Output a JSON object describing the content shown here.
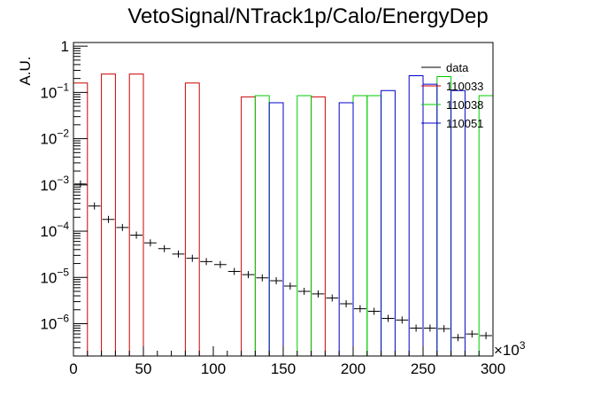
{
  "chart_data": {
    "type": "bar",
    "title": "VetoSignal/NTrack1p/Calo/EnergyDep",
    "ylabel": "A.U.",
    "xlabel": "",
    "x_multiplier_label": "×10",
    "x_multiplier_exp": "3",
    "xlim": [
      0,
      300
    ],
    "ylim": [
      2e-07,
      1.2
    ],
    "yscale": "log",
    "bin_width": 10,
    "x_ticks": [
      {
        "v": 0,
        "label": "0"
      },
      {
        "v": 50,
        "label": "50"
      },
      {
        "v": 100,
        "label": "100"
      },
      {
        "v": 150,
        "label": "150"
      },
      {
        "v": 200,
        "label": "200"
      },
      {
        "v": 250,
        "label": "250"
      },
      {
        "v": 300,
        "label": "300"
      }
    ],
    "y_ticks": [
      {
        "v": 1,
        "base": "1",
        "exp": ""
      },
      {
        "v": 0.1,
        "base": "10",
        "exp": "−1"
      },
      {
        "v": 0.01,
        "base": "10",
        "exp": "−2"
      },
      {
        "v": 0.001,
        "base": "10",
        "exp": "−3"
      },
      {
        "v": 0.0001,
        "base": "10",
        "exp": "−4"
      },
      {
        "v": 1e-05,
        "base": "10",
        "exp": "−5"
      },
      {
        "v": 1e-06,
        "base": "10",
        "exp": "−6"
      }
    ],
    "legend": {
      "position": "top-right"
    },
    "series": [
      {
        "name": "data",
        "color": "#000000",
        "style": "points",
        "values": [
          0.00105,
          0.00035,
          0.00018,
          0.00012,
          8.2e-05,
          5.6e-05,
          4.2e-05,
          3.2e-05,
          2.6e-05,
          2.2e-05,
          1.9e-05,
          1.35e-05,
          1.15e-05,
          9.8e-06,
          8.5e-06,
          6.5e-06,
          5e-06,
          4.4e-06,
          3.6e-06,
          2.7e-06,
          2.1e-06,
          1.85e-06,
          1.3e-06,
          1.2e-06,
          8e-07,
          8e-07,
          7.8e-07,
          5e-07,
          6e-07,
          5.5e-07
        ]
      },
      {
        "name": "110033",
        "color": "#cc0000",
        "style": "hist",
        "values": [
          0.16,
          0,
          0.25,
          0,
          0.25,
          0,
          0,
          0,
          0.16,
          0,
          0,
          0,
          0.08,
          0,
          0,
          0,
          0,
          0.08,
          0,
          0,
          0,
          0,
          0,
          0,
          0,
          0,
          0,
          0,
          0,
          0
        ]
      },
      {
        "name": "110038",
        "color": "#00cc00",
        "style": "hist",
        "values": [
          0,
          0,
          0,
          0,
          0,
          0,
          0,
          0,
          0,
          0,
          0,
          0,
          0,
          0.085,
          0,
          0,
          0.085,
          0,
          0,
          0,
          0.085,
          0.085,
          0,
          0,
          0,
          0,
          0.22,
          0,
          0,
          0.085
        ]
      },
      {
        "name": "110051",
        "color": "#0000cc",
        "style": "hist",
        "values": [
          0,
          0,
          0,
          0,
          0,
          0,
          0,
          0,
          0,
          0,
          0,
          0,
          0,
          0,
          0.06,
          0,
          0,
          0,
          0,
          0.06,
          0,
          0,
          0.11,
          0,
          0.23,
          0.15,
          0,
          0.11,
          0,
          0
        ]
      }
    ]
  }
}
